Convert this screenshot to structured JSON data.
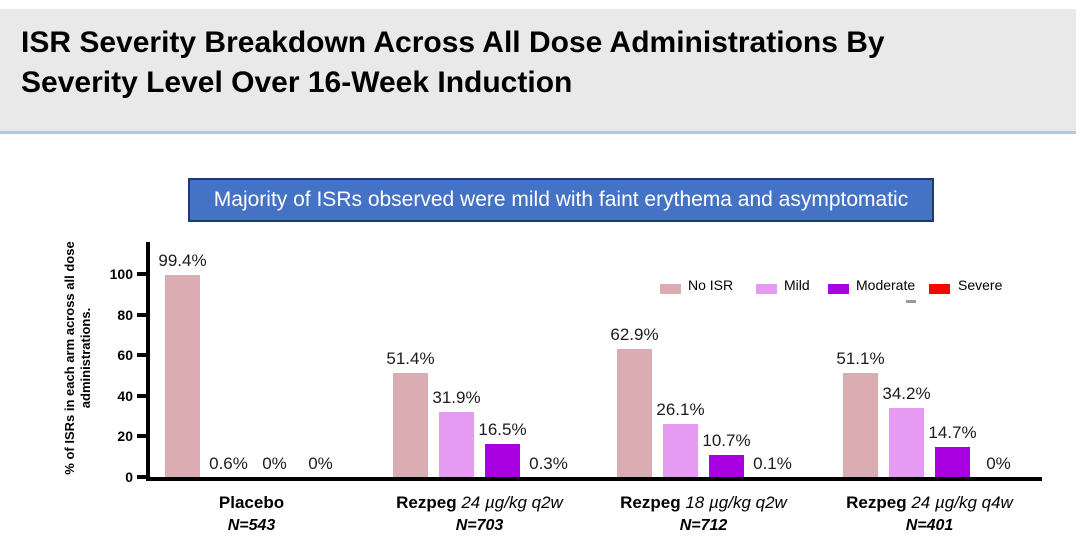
{
  "slide": {
    "title_line1": "ISR Severity Breakdown Across All Dose Administrations By",
    "title_line2": "Severity Level Over 16-Week Induction",
    "banner": "Majority of ISRs observed were mild with faint erythema and asymptomatic"
  },
  "colors": {
    "banner_bg": "#4472c4",
    "banner_border": "#1d3a6d",
    "header_bg": "#e9e9e9",
    "header_underline": "#b8c7e0",
    "axis": "#000000"
  },
  "chart_data": {
    "type": "bar",
    "title": "",
    "xlabel": "",
    "ylabel": "% of ISRs in each arm across all dose administrations.",
    "ylim": [
      0,
      100
    ],
    "yticks": [
      0,
      20,
      40,
      60,
      80,
      100
    ],
    "grid": false,
    "legend_position": "top-right",
    "groups": [
      {
        "label_main": "Placebo",
        "label_dose": "",
        "label_n": "N=543"
      },
      {
        "label_main": "Rezpeg",
        "label_dose": "24 µg/kg q2w",
        "label_n": "N=703"
      },
      {
        "label_main": "Rezpeg",
        "label_dose": "18 µg/kg q2w",
        "label_n": "N=712"
      },
      {
        "label_main": "Rezpeg",
        "label_dose": "24 µg/kg q4w",
        "label_n": "N=401"
      }
    ],
    "series": [
      {
        "name": "No ISR",
        "color": "#dbadb2",
        "values": [
          99.4,
          51.4,
          62.9,
          51.1
        ],
        "value_labels": [
          "99.4%",
          "51.4%",
          "62.9%",
          "51.1%"
        ]
      },
      {
        "name": "Mild",
        "color": "#e59bf2",
        "values": [
          0.6,
          31.9,
          26.1,
          34.2
        ],
        "value_labels": [
          "0.6%",
          "31.9%",
          "26.1%",
          "34.2%"
        ]
      },
      {
        "name": "Moderate",
        "color": "#a800e0",
        "values": [
          0,
          16.5,
          10.7,
          14.7
        ],
        "value_labels": [
          "0%",
          "16.5%",
          "10.7%",
          "14.7%"
        ]
      },
      {
        "name": "Severe",
        "color": "#fe0000",
        "values": [
          0,
          0.3,
          0.1,
          0
        ],
        "value_labels": [
          "0%",
          "0.3%",
          "0.1%",
          "0%"
        ]
      }
    ]
  }
}
